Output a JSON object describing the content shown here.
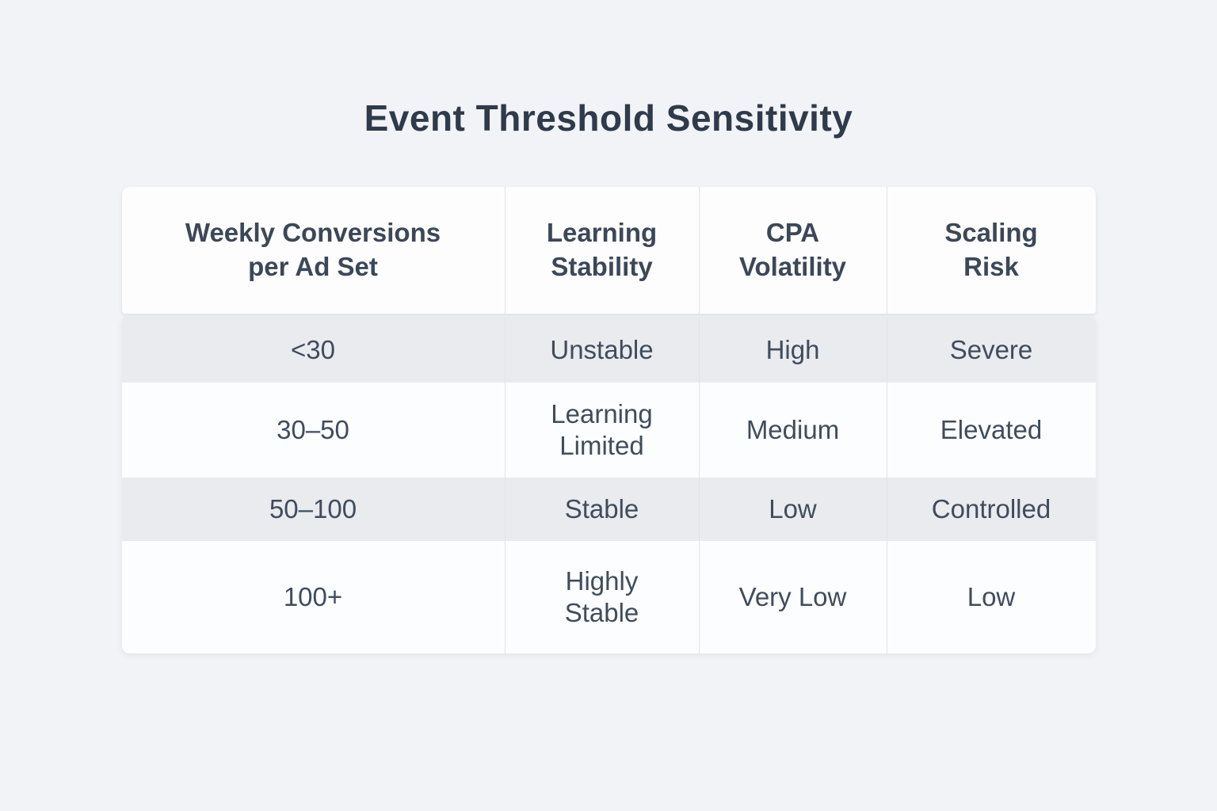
{
  "page": {
    "background_color": "#f2f3f7",
    "stripe_row_color": "#e9ebef",
    "white_row_color": "#fcfdfe",
    "divider_color": "#e0e3e9",
    "title_color": "#2f3a4a",
    "text_color": "#404c5d"
  },
  "chart_data": {
    "type": "table",
    "title": "Event Threshold Sensitivity",
    "columns": [
      "Weekly Conversions\nper Ad Set",
      "Learning\nStability",
      "CPA\nVolatility",
      "Scaling\nRisk"
    ],
    "rows": [
      [
        "<30",
        "Unstable",
        "High",
        "Severe"
      ],
      [
        "30–50",
        "Learning\nLimited",
        "Medium",
        "Elevated"
      ],
      [
        "50–100",
        "Stable",
        "Low",
        "Controlled"
      ],
      [
        "100+",
        "Highly\nStable",
        "Very Low",
        "Low"
      ]
    ],
    "layout_hints": {
      "row_striping": "odd rows gray, even rows white",
      "header_separated_card": true,
      "cells_center_aligned": true
    }
  }
}
